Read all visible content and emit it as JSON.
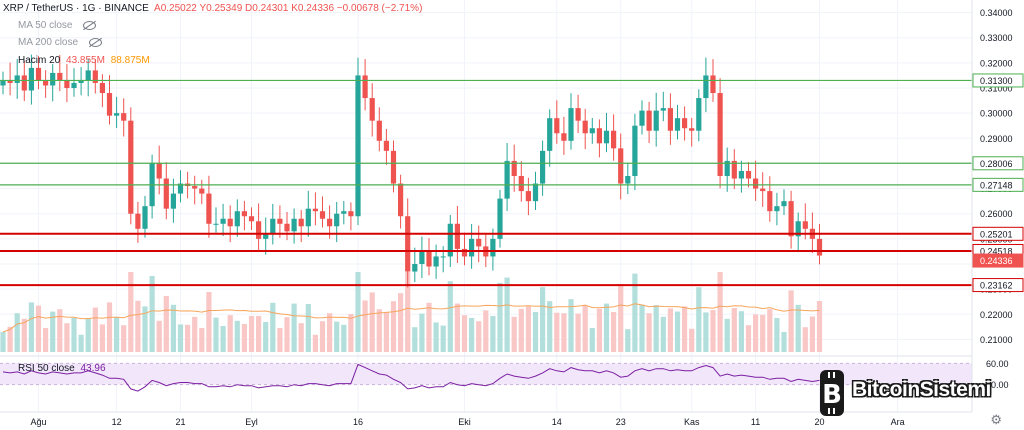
{
  "header": {
    "symbol": "XRP / TetherUS · 1G · BINANCE",
    "ohlc": "A0.25022 Y0.25349 D0.24301 K0.24336 −0.00678 (−2.71%)",
    "ma50_label": "MA 50 close",
    "ma200_label": "MA 200 close",
    "volume_label": "Hacim 20",
    "volume_value_1": "43.855M",
    "volume_value_2": "88.875M"
  },
  "rsi": {
    "label": "RSI 50 close",
    "value": "43.96",
    "upper_tick": "60.00",
    "lower_tick": "40.00"
  },
  "logo_text": "BitcoinSistemi",
  "colors": {
    "up": "#26a69a",
    "down": "#ef5350",
    "green_level": "#4caf50",
    "red_level": "#d50000",
    "rsi_bg": "#f2e6fb",
    "rsi_line": "#7b1fa2"
  },
  "chart_data": {
    "type": "candlestick",
    "ylim": [
      0.205,
      0.345
    ],
    "y_ticks": [
      0.21,
      0.22,
      0.23,
      0.24,
      0.25,
      0.26,
      0.27,
      0.28,
      0.29,
      0.3,
      0.31,
      0.32,
      0.33,
      0.34
    ],
    "x_ticks": [
      {
        "label": "Ağu",
        "index": 5
      },
      {
        "label": "12",
        "index": 16
      },
      {
        "label": "21",
        "index": 25
      },
      {
        "label": "Eyl",
        "index": 35
      },
      {
        "label": "16",
        "index": 50
      },
      {
        "label": "Eki",
        "index": 65
      },
      {
        "label": "14",
        "index": 78
      },
      {
        "label": "23",
        "index": 87
      },
      {
        "label": "Kas",
        "index": 97
      },
      {
        "label": "11",
        "index": 106
      },
      {
        "label": "20",
        "index": 115
      },
      {
        "label": "Ara",
        "index": 126
      }
    ],
    "levels": [
      {
        "price": 0.313,
        "label": "0.31300",
        "kind": "support_green"
      },
      {
        "price": 0.28006,
        "label": "0.28006",
        "kind": "support_green"
      },
      {
        "price": 0.27148,
        "label": "0.27148",
        "kind": "support_green"
      },
      {
        "price": 0.25201,
        "label": "0.25201",
        "kind": "support_red"
      },
      {
        "price": 0.24518,
        "label": "0.24518",
        "kind": "support_red"
      },
      {
        "price": 0.23162,
        "label": "0.23162",
        "kind": "support_red"
      }
    ],
    "last_price": {
      "price": 0.24336,
      "label": "0.24336"
    },
    "closes": [
      0.313,
      0.312,
      0.315,
      0.309,
      0.318,
      0.313,
      0.311,
      0.316,
      0.313,
      0.31,
      0.312,
      0.313,
      0.317,
      0.312,
      0.308,
      0.299,
      0.3,
      0.297,
      0.26,
      0.254,
      0.263,
      0.28,
      0.274,
      0.262,
      0.268,
      0.272,
      0.271,
      0.27,
      0.268,
      0.256,
      0.256,
      0.258,
      0.255,
      0.261,
      0.259,
      0.257,
      0.25,
      0.252,
      0.258,
      0.256,
      0.253,
      0.258,
      0.255,
      0.262,
      0.261,
      0.258,
      0.255,
      0.26,
      0.261,
      0.259,
      0.315,
      0.306,
      0.297,
      0.289,
      0.285,
      0.272,
      0.259,
      0.237,
      0.24,
      0.245,
      0.239,
      0.243,
      0.243,
      0.256,
      0.246,
      0.243,
      0.25,
      0.247,
      0.243,
      0.25,
      0.266,
      0.281,
      0.275,
      0.269,
      0.265,
      0.272,
      0.285,
      0.298,
      0.292,
      0.289,
      0.302,
      0.297,
      0.292,
      0.294,
      0.288,
      0.293,
      0.286,
      0.272,
      0.275,
      0.295,
      0.301,
      0.293,
      0.301,
      0.302,
      0.293,
      0.298,
      0.294,
      0.293,
      0.306,
      0.315,
      0.308,
      0.275,
      0.281,
      0.274,
      0.277,
      0.274,
      0.27,
      0.269,
      0.261,
      0.263,
      0.265,
      0.251,
      0.257,
      0.254,
      0.25,
      0.24336
    ],
    "rsi_values": [
      52,
      51,
      52,
      50,
      53,
      51,
      50,
      52,
      51,
      50,
      51,
      51,
      53,
      51,
      49,
      46,
      46,
      45,
      36,
      34,
      38,
      44,
      42,
      39,
      41,
      42,
      42,
      41,
      41,
      38,
      38,
      39,
      38,
      40,
      39,
      39,
      37,
      38,
      39,
      39,
      38,
      40,
      39,
      41,
      41,
      40,
      39,
      41,
      41,
      41,
      59,
      56,
      53,
      50,
      49,
      45,
      42,
      36,
      37,
      39,
      37,
      38,
      38,
      42,
      40,
      39,
      41,
      40,
      39,
      41,
      46,
      50,
      48,
      47,
      46,
      48,
      51,
      55,
      53,
      52,
      56,
      54,
      53,
      53,
      51,
      53,
      51,
      47,
      48,
      53,
      55,
      53,
      55,
      55,
      53,
      54,
      53,
      53,
      56,
      58,
      56,
      48,
      50,
      48,
      49,
      48,
      47,
      47,
      45,
      46,
      46,
      43,
      45,
      44,
      43,
      43.96
    ]
  }
}
